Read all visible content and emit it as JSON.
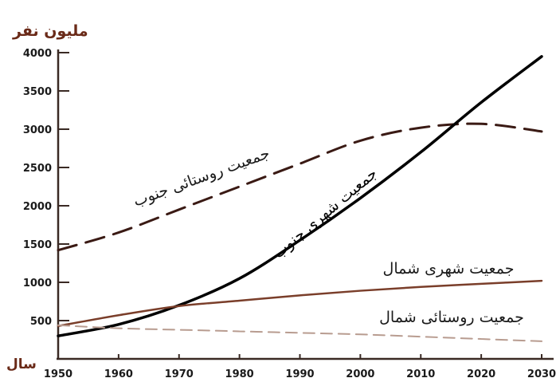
{
  "chart_data": {
    "type": "line",
    "ylabel": "ملیون نفر",
    "xlabel": "سال",
    "xlim": [
      1950,
      2030
    ],
    "ylim": [
      0,
      4000
    ],
    "x_ticks": [
      1950,
      1960,
      1970,
      1980,
      1990,
      2000,
      2010,
      2020,
      2030
    ],
    "y_ticks": [
      500,
      1000,
      1500,
      2000,
      2500,
      3000,
      3500,
      4000
    ],
    "grid": false,
    "series": [
      {
        "name": "جمعیت روستائی جنوب",
        "style": "dashed",
        "color": "#3a1a14",
        "x": [
          1950,
          1960,
          1970,
          1980,
          1990,
          2000,
          2010,
          2020,
          2030
        ],
        "y": [
          1420,
          1650,
          1950,
          2250,
          2550,
          2850,
          3020,
          3070,
          2970
        ]
      },
      {
        "name": "جمعیت شهری جنوب",
        "style": "solid",
        "color": "#000000",
        "x": [
          1950,
          1960,
          1970,
          1980,
          1990,
          2000,
          2010,
          2020,
          2030
        ],
        "y": [
          300,
          450,
          700,
          1050,
          1550,
          2100,
          2700,
          3350,
          3950
        ]
      },
      {
        "name": "جمعیت شهری شمال",
        "style": "solid",
        "color": "#7a3e2a",
        "x": [
          1950,
          1960,
          1970,
          1980,
          1990,
          2000,
          2010,
          2020,
          2030
        ],
        "y": [
          430,
          570,
          690,
          760,
          830,
          890,
          940,
          980,
          1020
        ]
      },
      {
        "name": "جمعیت روستائی شمال",
        "style": "dashed",
        "color": "#b89c90",
        "x": [
          1950,
          1960,
          1970,
          1980,
          1990,
          2000,
          2010,
          2020,
          2030
        ],
        "y": [
          440,
          400,
          380,
          360,
          340,
          320,
          290,
          260,
          230
        ]
      }
    ]
  }
}
